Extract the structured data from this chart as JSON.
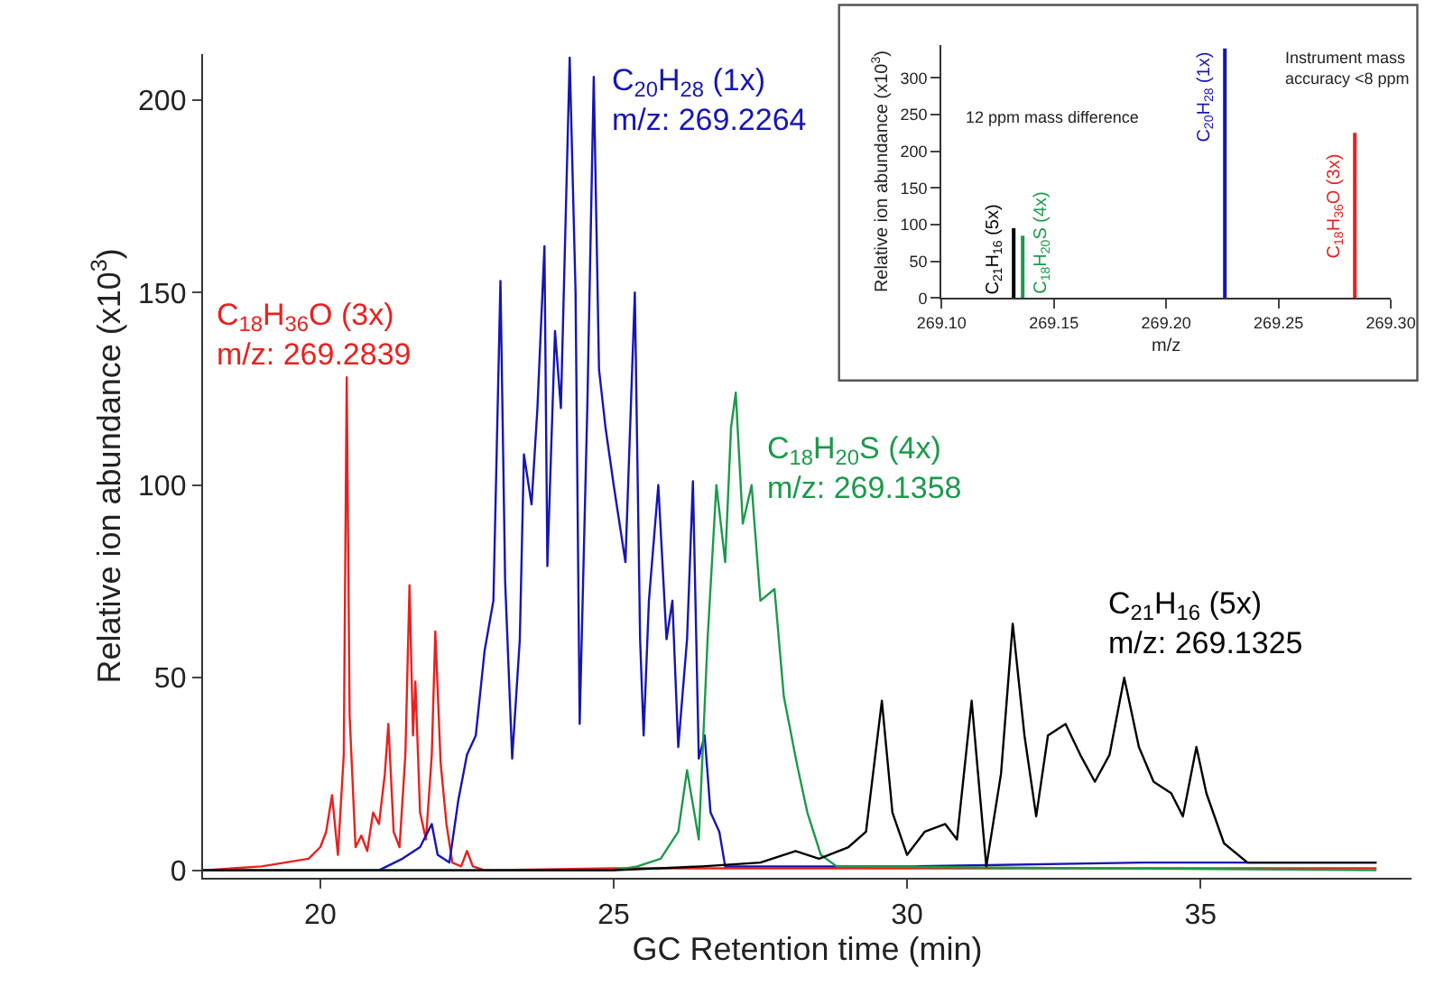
{
  "chart_data": [
    {
      "type": "line",
      "xlabel": "GC Retention time (min)",
      "ylabel": "Relative ion abundance (x10$^{3}$)",
      "xlim": [
        18,
        38.6
      ],
      "ylim": [
        -2,
        212
      ],
      "xticks": [
        20,
        25,
        30,
        35
      ],
      "yticks": [
        0,
        50,
        100,
        150,
        200
      ],
      "series": [
        {
          "name": "C$_{18}$H$_{36}$O (3x)\nm/z: 269.2839",
          "color": "#e8211f",
          "x": [
            18,
            19,
            19.8,
            20.0,
            20.1,
            20.2,
            20.3,
            20.4,
            20.45,
            20.5,
            20.6,
            20.7,
            20.8,
            20.9,
            21.0,
            21.1,
            21.16,
            21.25,
            21.35,
            21.45,
            21.52,
            21.58,
            21.62,
            21.7,
            21.8,
            21.9,
            21.96,
            22.05,
            22.15,
            22.25,
            22.4,
            22.5,
            22.6,
            22.8,
            25,
            30,
            38
          ],
          "values": [
            0,
            1,
            3,
            6,
            10,
            19.5,
            4,
            30,
            128,
            40,
            6,
            9,
            5,
            15,
            12,
            25,
            38,
            10,
            6,
            30,
            74,
            35,
            49,
            15,
            8,
            30,
            62,
            28,
            12,
            2,
            1,
            5,
            1,
            0,
            0.5,
            0.5,
            0.5
          ]
        },
        {
          "name": "C$_{20}$H$_{28}$ (1x)\nm/z: 269.2264",
          "color": "#1515b5",
          "x": [
            18,
            21.0,
            21.4,
            21.7,
            21.9,
            22.0,
            22.2,
            22.35,
            22.5,
            22.65,
            22.8,
            22.95,
            23.07,
            23.15,
            23.27,
            23.4,
            23.47,
            23.6,
            23.7,
            23.82,
            23.87,
            24.0,
            24.1,
            24.25,
            24.35,
            24.42,
            24.55,
            24.66,
            24.75,
            24.86,
            25.0,
            25.2,
            25.36,
            25.45,
            25.51,
            25.6,
            25.76,
            25.9,
            26.0,
            26.1,
            26.25,
            26.35,
            26.45,
            26.55,
            26.65,
            26.8,
            26.9,
            27.5,
            30,
            34,
            38
          ],
          "values": [
            0,
            0,
            3,
            6,
            12,
            4,
            2,
            18,
            30,
            35,
            57,
            70,
            153,
            75,
            29,
            60,
            108,
            95,
            120,
            162,
            79,
            140,
            120,
            211,
            150,
            38,
            120,
            206,
            130,
            115,
            100,
            80,
            150,
            60,
            35,
            70,
            100,
            60,
            70,
            32,
            60,
            101,
            29,
            35,
            15,
            10,
            1,
            1,
            1,
            2,
            2
          ]
        },
        {
          "name": "C$_{18}$H$_{20}$S (4x)\nm/z: 269.1358",
          "color": "#1b9a4a",
          "x": [
            18,
            25.0,
            25.4,
            25.8,
            26.1,
            26.25,
            26.45,
            26.6,
            26.75,
            26.9,
            27.0,
            27.08,
            27.2,
            27.35,
            27.5,
            27.74,
            27.9,
            28.13,
            28.3,
            28.53,
            28.8,
            38
          ],
          "values": [
            0,
            0,
            1,
            3,
            10,
            26,
            8,
            60,
            100,
            80,
            115,
            124,
            90,
            100,
            70,
            73,
            45,
            27,
            15,
            4,
            1,
            0
          ]
        },
        {
          "name": "C$_{21}$H$_{16}$ (5x)\nm/z: 269.1325",
          "color": "#000000",
          "x": [
            18,
            25,
            26.5,
            27.5,
            28.1,
            28.5,
            29.0,
            29.3,
            29.57,
            29.75,
            30.0,
            30.3,
            30.65,
            30.85,
            31.1,
            31.25,
            31.35,
            31.6,
            31.8,
            32.0,
            32.2,
            32.4,
            32.7,
            32.95,
            33.2,
            33.45,
            33.7,
            33.95,
            34.2,
            34.5,
            34.7,
            34.93,
            35.1,
            35.4,
            35.8,
            36.5,
            37.2,
            38
          ],
          "values": [
            0,
            0,
            1,
            2,
            5,
            3,
            6,
            10,
            44,
            15,
            4,
            10,
            12,
            8,
            44,
            18,
            1,
            25,
            64,
            35,
            14,
            35,
            38,
            30,
            23,
            30,
            50,
            32,
            23,
            20,
            14,
            32,
            20,
            7,
            2,
            2,
            2,
            2
          ]
        }
      ]
    },
    {
      "type": "bar",
      "xlabel": "m/z",
      "ylabel": "Relative ion abundance (x10$^{3}$)",
      "xlim": [
        269.1,
        269.3
      ],
      "ylim": [
        0,
        345
      ],
      "xticks": [
        {
          "value": 269.1,
          "label": "269.10"
        },
        {
          "value": 269.15,
          "label": "269.15"
        },
        {
          "value": 269.2,
          "label": "269.20"
        },
        {
          "value": 269.25,
          "label": "269.25"
        },
        {
          "value": 269.3,
          "label": "269.30"
        }
      ],
      "yticks": [
        0,
        50,
        100,
        150,
        200,
        250,
        300
      ],
      "annotations": [
        "12 ppm mass difference",
        "Instrument mass\naccuracy <8 ppm"
      ],
      "series": [
        {
          "name": "C$_{21}$H$_{16}$ (5x)",
          "color": "#000000",
          "x": [
            269.1325
          ],
          "values": [
            95
          ]
        },
        {
          "name": "C$_{18}$H$_{20}$S (4x)",
          "color": "#1b9a4a",
          "x": [
            269.1358
          ],
          "values": [
            85
          ]
        },
        {
          "name": "C$_{20}$H$_{28}$ (1x)",
          "color": "#1515b5",
          "x": [
            269.2264
          ],
          "values": [
            340
          ]
        },
        {
          "name": "C$_{18}$H$_{36}$O (3x)",
          "color": "#e8211f",
          "x": [
            269.2839
          ],
          "values": [
            225
          ]
        }
      ]
    }
  ]
}
